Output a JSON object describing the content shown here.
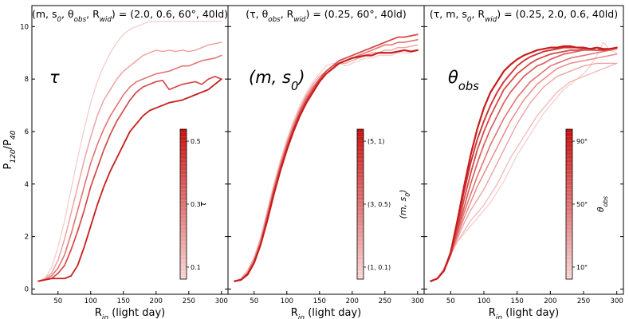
{
  "chart_data": [
    {
      "type": "line",
      "title": "(m, s0, θobs, Rwid) = (2.0, 0.6, 60°, 40ld)",
      "title_parts": [
        "(m, s",
        "0",
        ", θ",
        "obs",
        ", R",
        "wid",
        ") = (2.0, 0.6, 60°, 40ld)"
      ],
      "panel_label": "τ",
      "xlabel": "R_in (light day)",
      "xlabel_parts": [
        "R",
        "in",
        " (light day)"
      ],
      "ylabel": "P120/P40",
      "ylabel_parts": [
        "P",
        "120",
        "/P",
        "40"
      ],
      "xlim": [
        10,
        310
      ],
      "ylim": [
        -0.2,
        10.8
      ],
      "xticks": [
        50,
        100,
        150,
        200,
        250,
        300
      ],
      "yticks": [
        0,
        2,
        4,
        6,
        8,
        10
      ],
      "colorbar": {
        "label": "τ",
        "ticks": [
          "0.5",
          "0.3",
          "0.1"
        ],
        "tick_positions": [
          0.92,
          0.5,
          0.08
        ]
      },
      "x": [
        20,
        30,
        40,
        50,
        60,
        70,
        80,
        90,
        100,
        110,
        120,
        130,
        140,
        150,
        160,
        170,
        180,
        190,
        200,
        210,
        220,
        230,
        240,
        250,
        260,
        270,
        280,
        290,
        300
      ],
      "series": [
        {
          "name": "τ = 0.1",
          "color": "#f6cccc",
          "width": 1.3,
          "values": [
            0.3,
            0.4,
            0.8,
            1.6,
            2.6,
            3.8,
            5.0,
            6.1,
            7.1,
            7.9,
            8.5,
            9.0,
            9.4,
            9.7,
            9.9,
            10.0,
            10.1,
            10.2,
            10.2,
            10.2,
            10.2,
            10.2,
            10.2,
            10.2,
            10.2,
            10.2,
            10.2,
            10.2,
            10.2
          ]
        },
        {
          "name": "τ = 0.2",
          "color": "#eea3a3",
          "width": 1.5,
          "values": [
            0.3,
            0.4,
            0.6,
            1.1,
            1.9,
            2.9,
            3.9,
            4.9,
            5.8,
            6.6,
            7.2,
            7.6,
            8.0,
            8.3,
            8.5,
            8.7,
            8.9,
            9.0,
            9.1,
            9.05,
            9.1,
            9.05,
            9.1,
            9.05,
            9.1,
            9.2,
            9.3,
            9.35,
            9.4
          ]
        },
        {
          "name": "τ = 0.3",
          "color": "#e37474",
          "width": 1.6,
          "values": [
            0.3,
            0.35,
            0.5,
            0.8,
            1.3,
            2.1,
            3.0,
            3.9,
            4.8,
            5.5,
            6.1,
            6.6,
            7.0,
            7.4,
            7.7,
            7.9,
            8.0,
            8.1,
            8.2,
            8.25,
            8.3,
            8.4,
            8.5,
            8.5,
            8.6,
            8.7,
            8.75,
            8.8,
            8.9
          ]
        },
        {
          "name": "τ = 0.4",
          "color": "#d64848",
          "width": 1.7,
          "values": [
            0.3,
            0.35,
            0.4,
            0.6,
            0.9,
            1.5,
            2.2,
            3.0,
            3.9,
            4.6,
            5.3,
            5.9,
            6.4,
            6.8,
            7.2,
            7.5,
            7.7,
            7.8,
            7.9,
            7.95,
            7.6,
            7.7,
            7.8,
            7.85,
            7.9,
            7.8,
            8.0,
            8.1,
            8.0
          ]
        },
        {
          "name": "τ = 0.5",
          "color": "#c81c1c",
          "width": 1.8,
          "values": [
            0.3,
            0.35,
            0.4,
            0.4,
            0.4,
            0.5,
            0.9,
            1.6,
            2.4,
            3.2,
            3.9,
            4.5,
            5.0,
            5.5,
            6.0,
            6.3,
            6.6,
            6.8,
            6.9,
            7.0,
            7.1,
            7.15,
            7.2,
            7.3,
            7.4,
            7.5,
            7.6,
            7.8,
            8.0
          ]
        }
      ]
    },
    {
      "type": "line",
      "title": "(τ, θobs, Rwid) = (0.25, 60°, 40ld)",
      "title_parts": [
        "(τ, θ",
        "obs",
        ", R",
        "wid",
        ") = (0.25, 60°, 40ld)"
      ],
      "panel_label": "(m, s0)",
      "panel_label_parts": [
        "(m, s",
        "0",
        ")"
      ],
      "xlabel": "R_in (light day)",
      "xlabel_parts": [
        "R",
        "in",
        " (light day)"
      ],
      "xlim": [
        10,
        310
      ],
      "ylim": [
        -0.2,
        10.8
      ],
      "xticks": [
        50,
        100,
        150,
        200,
        250,
        300
      ],
      "yticks": [
        0,
        2,
        4,
        6,
        8,
        10
      ],
      "colorbar": {
        "label": "(m, s0)",
        "label_parts": [
          "(m, s",
          "0",
          ")"
        ],
        "ticks": [
          "(5, 1)",
          "(3, 0.5)",
          "(1, 0.1)"
        ],
        "tick_positions": [
          0.92,
          0.5,
          0.08
        ]
      },
      "x": [
        20,
        30,
        40,
        50,
        60,
        70,
        80,
        90,
        100,
        110,
        120,
        130,
        140,
        150,
        160,
        170,
        180,
        190,
        200,
        210,
        220,
        230,
        240,
        250,
        260,
        270,
        280,
        290,
        300
      ],
      "series": [
        {
          "name": "(m, s0) = (1, 0.1)",
          "color": "#f6cccc",
          "width": 1.2,
          "values": [
            0.3,
            0.4,
            0.7,
            1.2,
            2.0,
            3.0,
            4.0,
            4.9,
            5.7,
            6.4,
            7.0,
            7.5,
            7.9,
            8.2,
            8.5,
            8.6,
            8.6,
            8.5,
            8.6,
            8.7,
            8.8,
            8.8,
            8.9,
            8.9,
            8.9,
            9.0,
            9.0,
            9.0,
            9.1
          ]
        },
        {
          "name": "(m, s0) = (2, 0.3)",
          "color": "#eea3a3",
          "width": 1.4,
          "values": [
            0.3,
            0.4,
            0.7,
            1.2,
            1.9,
            2.9,
            3.9,
            4.8,
            5.6,
            6.3,
            6.9,
            7.4,
            7.8,
            8.1,
            8.3,
            8.5,
            8.6,
            8.6,
            8.7,
            8.8,
            8.9,
            9.0,
            9.0,
            9.1,
            9.1,
            9.2,
            9.2,
            9.25,
            9.3
          ]
        },
        {
          "name": "(m, s0) = (3, 0.5)",
          "color": "#e37474",
          "width": 1.6,
          "values": [
            0.3,
            0.35,
            0.6,
            1.1,
            1.8,
            2.8,
            3.8,
            4.7,
            5.5,
            6.2,
            6.8,
            7.3,
            7.7,
            8.0,
            8.3,
            8.5,
            8.6,
            8.7,
            8.8,
            8.9,
            9.0,
            9.1,
            9.2,
            9.3,
            9.3,
            9.4,
            9.4,
            9.45,
            9.5
          ]
        },
        {
          "name": "(m, s0) = (4, 0.8)",
          "color": "#d64848",
          "width": 1.8,
          "values": [
            0.3,
            0.35,
            0.6,
            1.0,
            1.7,
            2.7,
            3.7,
            4.6,
            5.4,
            6.1,
            6.7,
            7.2,
            7.6,
            8.0,
            8.3,
            8.5,
            8.7,
            8.8,
            8.9,
            9.0,
            9.1,
            9.2,
            9.3,
            9.4,
            9.5,
            9.6,
            9.6,
            9.65,
            9.7
          ]
        },
        {
          "name": "(m, s0) = (5, 1)",
          "color": "#c81c1c",
          "width": 2.2,
          "values": [
            0.3,
            0.35,
            0.55,
            1.0,
            1.7,
            2.6,
            3.6,
            4.5,
            5.3,
            6.0,
            6.6,
            7.1,
            7.5,
            7.9,
            8.2,
            8.4,
            8.6,
            8.7,
            8.8,
            8.85,
            8.9,
            8.9,
            9.0,
            9.0,
            9.0,
            9.05,
            9.1,
            9.05,
            9.1
          ]
        }
      ]
    },
    {
      "type": "line",
      "title": "(τ, m, s0, Rwid) = (0.25, 2.0, 0.6, 40ld)",
      "title_parts": [
        "(τ, m, s",
        "0",
        ", R",
        "wid",
        ") = (0.25, 2.0, 0.6, 40ld)"
      ],
      "panel_label": "θobs",
      "panel_label_parts": [
        "θ",
        "obs"
      ],
      "xlabel": "R_in (light day)",
      "xlabel_parts": [
        "R",
        "in",
        " (light day)"
      ],
      "xlim": [
        10,
        310
      ],
      "ylim": [
        -0.2,
        10.8
      ],
      "xticks": [
        50,
        100,
        150,
        200,
        250,
        300
      ],
      "yticks": [
        0,
        2,
        4,
        6,
        8,
        10
      ],
      "colorbar": {
        "label": "θobs",
        "label_parts": [
          "θ",
          "obs"
        ],
        "ticks": [
          "90°",
          "50°",
          "10°"
        ],
        "tick_positions": [
          0.92,
          0.5,
          0.08
        ]
      },
      "x": [
        20,
        30,
        40,
        50,
        60,
        70,
        80,
        90,
        100,
        110,
        120,
        130,
        140,
        150,
        160,
        170,
        180,
        190,
        200,
        210,
        220,
        230,
        240,
        250,
        260,
        270,
        280,
        290,
        300
      ],
      "series": [
        {
          "name": "θobs = 10°",
          "color": "#f6cccc",
          "width": 1.2,
          "values": [
            0.3,
            0.4,
            0.8,
            1.4,
            1.8,
            2.1,
            2.4,
            2.7,
            3.0,
            3.3,
            3.7,
            4.1,
            4.6,
            5.1,
            5.5,
            5.9,
            6.3,
            6.7,
            7.0,
            7.3,
            7.6,
            7.8,
            8.0,
            8.2,
            8.5,
            8.9,
            9.4,
            9.1,
            9.0
          ]
        },
        {
          "name": "θobs = 20°",
          "color": "#f2b8b8",
          "width": 1.3,
          "values": [
            0.3,
            0.4,
            0.8,
            1.3,
            1.8,
            2.2,
            2.6,
            2.9,
            3.2,
            3.6,
            4.0,
            4.5,
            5.0,
            5.4,
            5.8,
            6.2,
            6.6,
            6.9,
            7.2,
            7.5,
            7.7,
            7.9,
            8.0,
            8.1,
            8.2,
            8.3,
            8.4,
            8.5,
            8.6
          ]
        },
        {
          "name": "θobs = 30°",
          "color": "#eea3a3",
          "width": 1.4,
          "values": [
            0.3,
            0.4,
            0.7,
            1.3,
            1.9,
            2.5,
            3.0,
            3.4,
            3.8,
            4.3,
            4.8,
            5.3,
            5.8,
            6.3,
            6.7,
            7.1,
            7.4,
            7.7,
            7.9,
            8.1,
            8.2,
            8.3,
            8.4,
            8.5,
            8.55,
            8.6,
            8.6,
            8.6,
            8.6
          ]
        },
        {
          "name": "θobs = 40°",
          "color": "#e98c8c",
          "width": 1.5,
          "values": [
            0.3,
            0.4,
            0.7,
            1.3,
            2.0,
            2.7,
            3.3,
            3.9,
            4.4,
            4.9,
            5.4,
            5.9,
            6.4,
            6.8,
            7.2,
            7.5,
            7.8,
            8.0,
            8.2,
            8.4,
            8.5,
            8.6,
            8.65,
            8.7,
            8.75,
            8.8,
            8.85,
            8.9,
            8.95
          ]
        },
        {
          "name": "θobs = 50°",
          "color": "#e37474",
          "width": 1.6,
          "values": [
            0.3,
            0.4,
            0.7,
            1.3,
            2.1,
            2.9,
            3.6,
            4.3,
            4.9,
            5.5,
            6.0,
            6.5,
            6.9,
            7.3,
            7.6,
            7.9,
            8.1,
            8.3,
            8.5,
            8.6,
            8.7,
            8.8,
            8.85,
            8.9,
            8.95,
            9.0,
            9.05,
            9.1,
            9.15
          ]
        },
        {
          "name": "θobs = 60°",
          "color": "#dc5e5e",
          "width": 1.7,
          "values": [
            0.3,
            0.4,
            0.7,
            1.3,
            2.2,
            3.1,
            4.0,
            4.8,
            5.5,
            6.1,
            6.6,
            7.1,
            7.5,
            7.8,
            8.1,
            8.3,
            8.5,
            8.6,
            8.75,
            8.85,
            8.95,
            9.0,
            9.05,
            9.1,
            9.1,
            9.1,
            9.15,
            9.15,
            9.2
          ]
        },
        {
          "name": "θobs = 70°",
          "color": "#d64848",
          "width": 1.8,
          "values": [
            0.3,
            0.4,
            0.7,
            1.3,
            2.3,
            3.4,
            4.4,
            5.3,
            6.0,
            6.6,
            7.1,
            7.6,
            7.9,
            8.2,
            8.4,
            8.6,
            8.75,
            8.85,
            8.95,
            9.0,
            9.05,
            9.1,
            9.1,
            9.15,
            9.15,
            9.1,
            9.1,
            9.15,
            9.2
          ]
        },
        {
          "name": "θobs = 80°",
          "color": "#cf3232",
          "width": 1.9,
          "values": [
            0.3,
            0.4,
            0.7,
            1.4,
            2.5,
            3.7,
            4.8,
            5.7,
            6.4,
            7.0,
            7.5,
            7.9,
            8.2,
            8.5,
            8.7,
            8.85,
            8.95,
            9.05,
            9.1,
            9.15,
            9.2,
            9.2,
            9.2,
            9.2,
            9.15,
            9.2,
            9.1,
            9.15,
            9.2
          ]
        },
        {
          "name": "θobs = 90°",
          "color": "#c81c1c",
          "width": 2.2,
          "values": [
            0.3,
            0.4,
            0.7,
            1.4,
            2.6,
            3.9,
            5.1,
            6.1,
            6.9,
            7.5,
            7.9,
            8.3,
            8.55,
            8.75,
            8.9,
            9.0,
            9.1,
            9.15,
            9.2,
            9.2,
            9.25,
            9.25,
            9.2,
            9.2,
            9.15,
            9.2,
            9.15,
            9.15,
            9.2
          ]
        }
      ]
    }
  ]
}
